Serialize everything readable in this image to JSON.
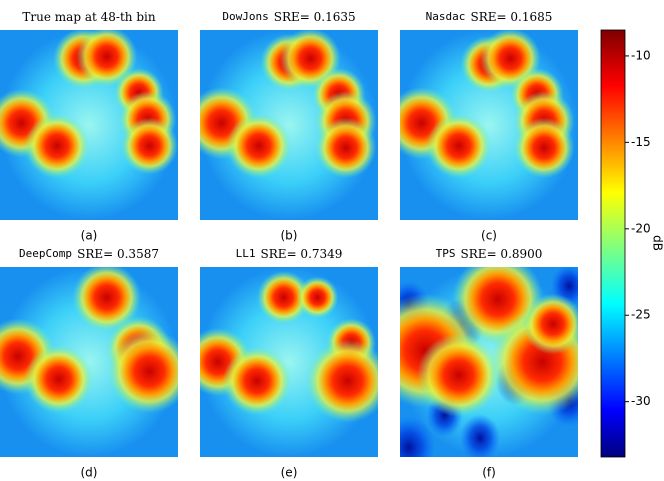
{
  "chart_data": {
    "type": "heatmap",
    "panels": [
      {
        "title": "True map at 48-th bin",
        "caption": "(a)"
      },
      {
        "method": "DowJons",
        "title": "SRE= 0.1635",
        "caption": "(b)"
      },
      {
        "method": "Nasdac",
        "title": "SRE= 0.1685",
        "caption": "(c)"
      },
      {
        "method": "DeepComp",
        "title": "SRE= 0.3587",
        "caption": "(d)"
      },
      {
        "method": "LL1",
        "title": "SRE= 0.7349",
        "caption": "(e)"
      },
      {
        "method": "TPS",
        "title": "SRE= 0.8900",
        "caption": "(f)"
      }
    ],
    "colorbar": {
      "label": "dB",
      "ylim": [
        -33.2,
        -8.5
      ],
      "yticks": [
        -10,
        -15,
        -20,
        -25,
        -30
      ]
    }
  }
}
